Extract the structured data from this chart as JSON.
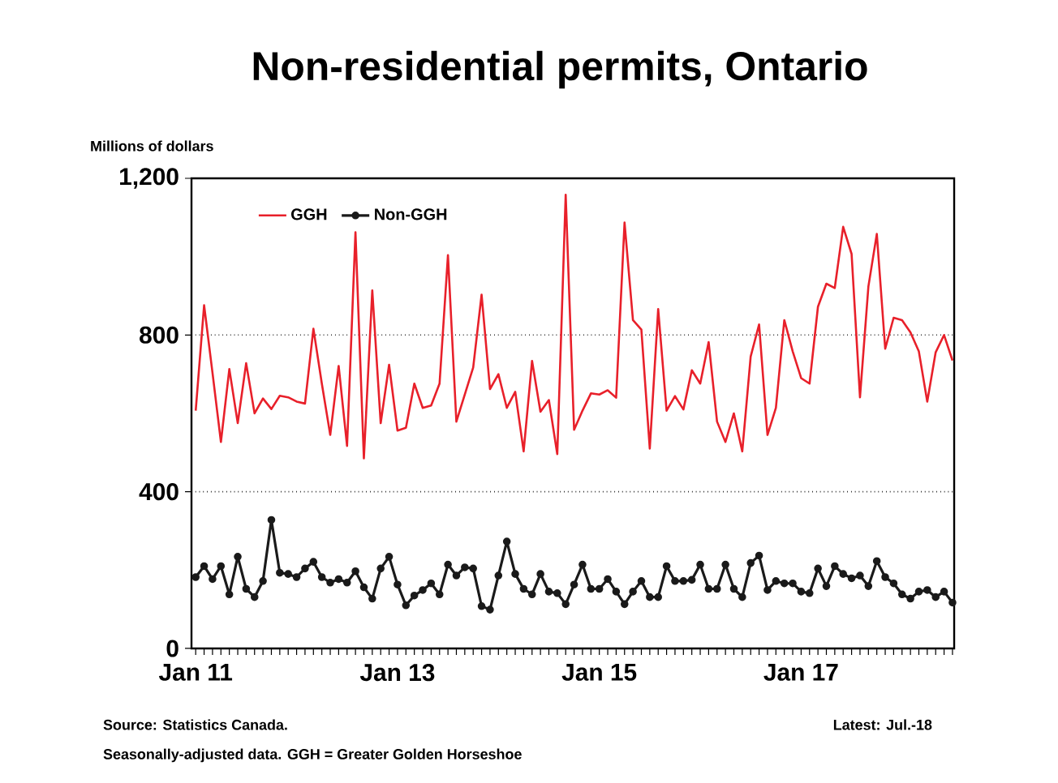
{
  "chart_data": {
    "type": "line",
    "title": "Non-residential permits, Ontario",
    "ylabel": "Millions of dollars",
    "categories": [
      "Jan 11",
      null,
      null,
      null,
      null,
      null,
      null,
      null,
      null,
      null,
      null,
      null,
      null,
      null,
      null,
      null,
      null,
      null,
      null,
      null,
      null,
      null,
      null,
      null,
      "Jan 13",
      null,
      null,
      null,
      null,
      null,
      null,
      null,
      null,
      null,
      null,
      null,
      null,
      null,
      null,
      null,
      null,
      null,
      null,
      null,
      null,
      null,
      null,
      null,
      "Jan 15",
      null,
      null,
      null,
      null,
      null,
      null,
      null,
      null,
      null,
      null,
      null,
      null,
      null,
      null,
      null,
      null,
      null,
      null,
      null,
      null,
      null,
      null,
      null,
      "Jan 17",
      null,
      null,
      null,
      null,
      null,
      null,
      null,
      null,
      null,
      null,
      null,
      null,
      null,
      null,
      null,
      null,
      null,
      null
    ],
    "series": [
      {
        "name": "GGH",
        "color": "#e8202a",
        "marker": "none",
        "values": [
          607,
          876,
          703,
          527,
          713,
          575,
          728,
          600,
          638,
          611,
          645,
          641,
          630,
          625,
          816,
          676,
          545,
          721,
          517,
          1062,
          485,
          914,
          575,
          724,
          556,
          563,
          676,
          614,
          620,
          676,
          1004,
          579,
          648,
          717,
          903,
          662,
          700,
          614,
          655,
          503,
          734,
          604,
          634,
          496,
          1158,
          558,
          607,
          651,
          648,
          659,
          640,
          1087,
          838,
          814,
          510,
          866,
          607,
          644,
          610,
          710,
          676,
          782,
          579,
          527,
          600,
          503,
          745,
          827,
          545,
          614,
          838,
          758,
          690,
          676,
          872,
          931,
          920,
          1076,
          1007,
          641,
          924,
          1058,
          765,
          844,
          838,
          807,
          758,
          630,
          756,
          800,
          735
        ]
      },
      {
        "name": "Non-GGH",
        "color": "#1a1a1a",
        "marker": "circle",
        "values": [
          182,
          210,
          177,
          210,
          138,
          234,
          152,
          131,
          172,
          328,
          193,
          190,
          182,
          204,
          221,
          182,
          168,
          177,
          168,
          197,
          156,
          127,
          204,
          234,
          163,
          110,
          135,
          149,
          166,
          138,
          214,
          186,
          207,
          204,
          108,
          99,
          186,
          273,
          190,
          152,
          138,
          190,
          145,
          141,
          113,
          163,
          214,
          152,
          152,
          177,
          145,
          113,
          145,
          172,
          131,
          131,
          210,
          172,
          172,
          175,
          214,
          152,
          152,
          214,
          152,
          131,
          218,
          237,
          149,
          172,
          166,
          166,
          145,
          141,
          204,
          159,
          210,
          190,
          179,
          186,
          159,
          223,
          182,
          166,
          138,
          127,
          145,
          149,
          131,
          145,
          117
        ]
      }
    ],
    "ylim": [
      0,
      1200
    ],
    "yticks": [
      0,
      400,
      800,
      {
        "value": 1200,
        "label": "1,200"
      }
    ],
    "grid": "y",
    "legend": "top left",
    "annotations": [
      "Source: Statistics Canada.",
      "Latest: Jul.-18",
      "Seasonally-adjusted data.  GGH = Greater Golden Horseshoe"
    ]
  }
}
